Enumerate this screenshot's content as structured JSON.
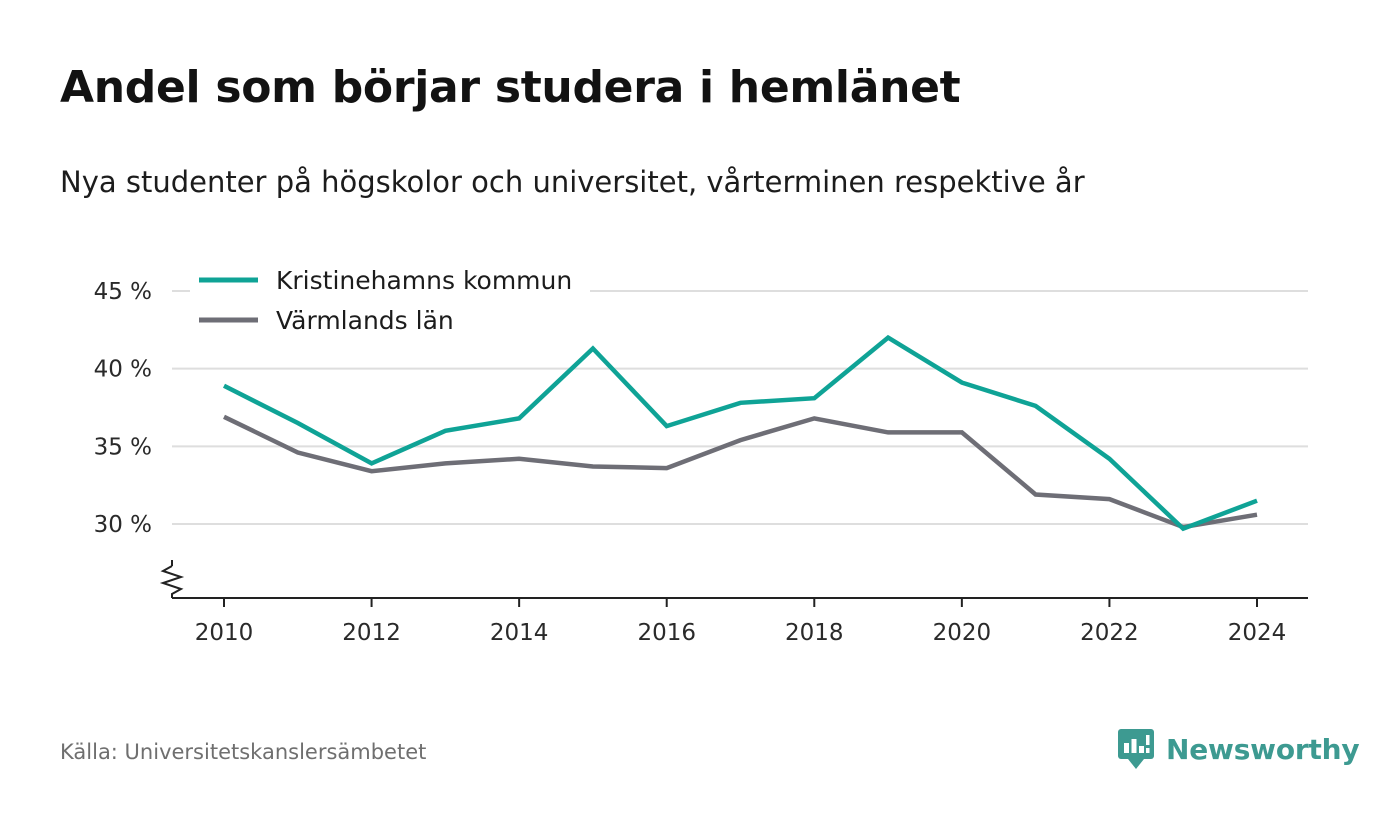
{
  "title": "Andel som börjar studera i hemlänet",
  "subtitle": "Nya studenter på högskolor och universitet, vårterminen respektive år",
  "source": "Källa: Universitetskanslersämbetet",
  "brand": {
    "name": "Newsworthy",
    "icon": "newsworthy-logo-icon",
    "color": "#3d9a91"
  },
  "chart_data": {
    "type": "line",
    "title": "Andel som börjar studera i hemlänet",
    "subtitle": "Nya studenter på högskolor och universitet, vårterminen respektive år",
    "xlabel": "",
    "ylabel": "",
    "x": [
      2010,
      2011,
      2012,
      2013,
      2014,
      2015,
      2016,
      2017,
      2018,
      2019,
      2020,
      2021,
      2022,
      2023,
      2024
    ],
    "x_ticks": [
      "2010",
      "2012",
      "2014",
      "2016",
      "2018",
      "2020",
      "2022",
      "2024"
    ],
    "y_ticks": [
      "30 %",
      "35 %",
      "40 %",
      "45 %"
    ],
    "y_tick_values": [
      30,
      35,
      40,
      45
    ],
    "ylim": [
      25.2,
      45
    ],
    "y_axis_break": true,
    "grid": "horizontal",
    "legend": "top-left",
    "series": [
      {
        "name": "Kristinehamns kommun",
        "color": "#0fa396",
        "values": [
          38.9,
          36.5,
          33.9,
          36.0,
          36.8,
          41.3,
          36.3,
          37.8,
          38.1,
          42.0,
          39.1,
          37.6,
          34.2,
          29.7,
          31.5
        ]
      },
      {
        "name": "Värmlands län",
        "color": "#6e6e76",
        "values": [
          36.9,
          34.6,
          33.4,
          33.9,
          34.2,
          33.7,
          33.6,
          35.4,
          36.8,
          35.9,
          35.9,
          31.9,
          31.6,
          29.8,
          30.6
        ]
      }
    ]
  }
}
